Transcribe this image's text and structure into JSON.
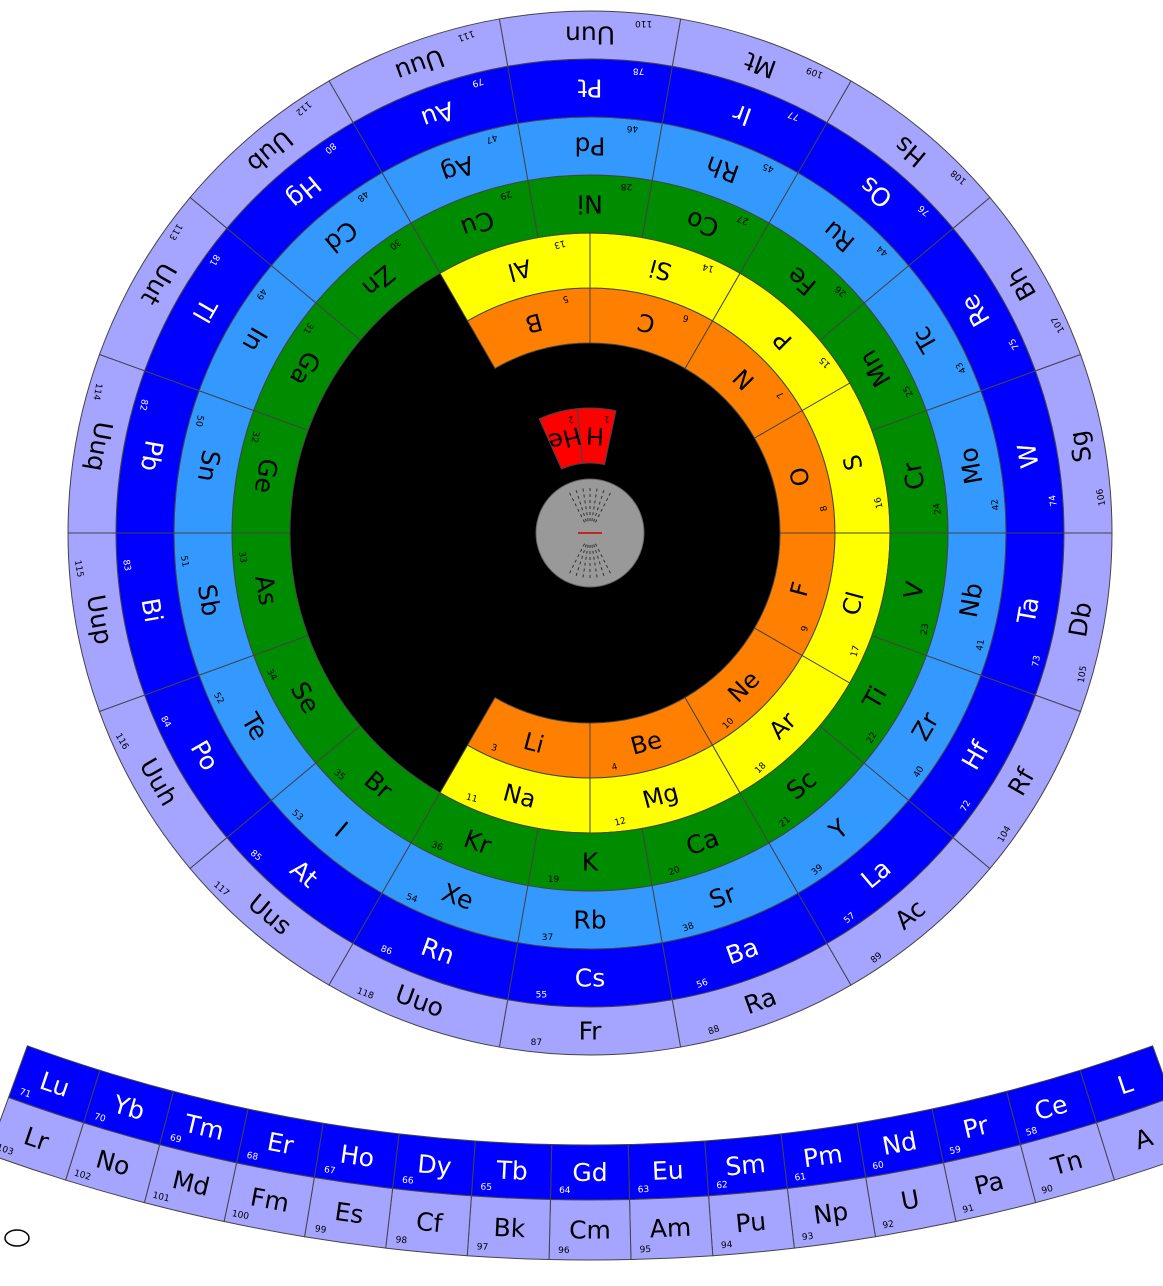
{
  "colors": {
    "s1": "#ff0000",
    "s2": "#ff8000",
    "p": "#ffff00",
    "d3": "#008c00",
    "d4": "#3399ff",
    "d5": "#0000ff",
    "outer": "#a5a5ff",
    "core": "#000000",
    "nucleus": "#999999",
    "stroke": "#444444"
  },
  "rings": [
    {
      "id": "ring-period-1",
      "color": "s1",
      "text": "#000000",
      "cells": [
        {
          "symbol": "H",
          "number": "1"
        },
        {
          "symbol": "He",
          "number": "2"
        }
      ]
    },
    {
      "id": "ring-shell-2",
      "color": "s2",
      "text": "#000000",
      "cells": [
        {
          "symbol": "Li",
          "number": "3"
        },
        {
          "symbol": "Be",
          "number": "4"
        },
        {
          "symbol": "Ne",
          "number": "10"
        },
        {
          "symbol": "F",
          "number": "9"
        },
        {
          "symbol": "O",
          "number": "8"
        },
        {
          "symbol": "N",
          "number": "7"
        },
        {
          "symbol": "C",
          "number": "6"
        },
        {
          "symbol": "B",
          "number": "5"
        }
      ]
    },
    {
      "id": "ring-shell-3",
      "color": "p",
      "text": "#000000",
      "cells": [
        {
          "symbol": "Na",
          "number": "11"
        },
        {
          "symbol": "Mg",
          "number": "12"
        },
        {
          "symbol": "Ar",
          "number": "18"
        },
        {
          "symbol": "Cl",
          "number": "17"
        },
        {
          "symbol": "S",
          "number": "16"
        },
        {
          "symbol": "P",
          "number": "15"
        },
        {
          "symbol": "Si",
          "number": "14"
        },
        {
          "symbol": "Al",
          "number": "13"
        }
      ]
    },
    {
      "id": "ring-period-4",
      "color": "d3",
      "text": "#000000",
      "cells": [
        {
          "symbol": "K",
          "number": "19"
        },
        {
          "symbol": "Ca",
          "number": "20"
        },
        {
          "symbol": "Sc",
          "number": "21"
        },
        {
          "symbol": "Ti",
          "number": "22"
        },
        {
          "symbol": "V",
          "number": "23"
        },
        {
          "symbol": "Cr",
          "number": "24"
        },
        {
          "symbol": "Mn",
          "number": "25"
        },
        {
          "symbol": "Fe",
          "number": "26"
        },
        {
          "symbol": "Co",
          "number": "27"
        },
        {
          "symbol": "Ni",
          "number": "28"
        },
        {
          "symbol": "Cu",
          "number": "29"
        },
        {
          "symbol": "Zn",
          "number": "30"
        },
        {
          "symbol": "Ga",
          "number": "31"
        },
        {
          "symbol": "Ge",
          "number": "32"
        },
        {
          "symbol": "As",
          "number": "33"
        },
        {
          "symbol": "Se",
          "number": "34"
        },
        {
          "symbol": "Br",
          "number": "35"
        },
        {
          "symbol": "Kr",
          "number": "36"
        }
      ]
    },
    {
      "id": "ring-period-5",
      "color": "d4",
      "text": "#000000",
      "cells": [
        {
          "symbol": "Rb",
          "number": "37"
        },
        {
          "symbol": "Sr",
          "number": "38"
        },
        {
          "symbol": "Y",
          "number": "39"
        },
        {
          "symbol": "Zr",
          "number": "40"
        },
        {
          "symbol": "Nb",
          "number": "41"
        },
        {
          "symbol": "Mo",
          "number": "42"
        },
        {
          "symbol": "Tc",
          "number": "43"
        },
        {
          "symbol": "Ru",
          "number": "44"
        },
        {
          "symbol": "Rh",
          "number": "45"
        },
        {
          "symbol": "Pd",
          "number": "46"
        },
        {
          "symbol": "Ag",
          "number": "47"
        },
        {
          "symbol": "Cd",
          "number": "48"
        },
        {
          "symbol": "In",
          "number": "49"
        },
        {
          "symbol": "Sn",
          "number": "50"
        },
        {
          "symbol": "Sb",
          "number": "51"
        },
        {
          "symbol": "Te",
          "number": "52"
        },
        {
          "symbol": "I",
          "number": "53"
        },
        {
          "symbol": "Xe",
          "number": "54"
        }
      ]
    },
    {
      "id": "ring-period-6",
      "color": "d5",
      "text": "#ffffff",
      "cells": [
        {
          "symbol": "Cs",
          "number": "55"
        },
        {
          "symbol": "Ba",
          "number": "56"
        },
        {
          "symbol": "La",
          "number": "57"
        },
        {
          "symbol": "Hf",
          "number": "72"
        },
        {
          "symbol": "Ta",
          "number": "73"
        },
        {
          "symbol": "W",
          "number": "74"
        },
        {
          "symbol": "Re",
          "number": "75"
        },
        {
          "symbol": "Os",
          "number": "76"
        },
        {
          "symbol": "Ir",
          "number": "77"
        },
        {
          "symbol": "Pt",
          "number": "78"
        },
        {
          "symbol": "Au",
          "number": "79"
        },
        {
          "symbol": "Hg",
          "number": "80"
        },
        {
          "symbol": "Tl",
          "number": "81"
        },
        {
          "symbol": "Pb",
          "number": "82"
        },
        {
          "symbol": "Bi",
          "number": "83"
        },
        {
          "symbol": "Po",
          "number": "84"
        },
        {
          "symbol": "At",
          "number": "85"
        },
        {
          "symbol": "Rn",
          "number": "86"
        }
      ]
    },
    {
      "id": "ring-period-7",
      "color": "outer",
      "text": "#000000",
      "cells": [
        {
          "symbol": "Fr",
          "number": "87"
        },
        {
          "symbol": "Ra",
          "number": "88"
        },
        {
          "symbol": "Ac",
          "number": "89"
        },
        {
          "symbol": "Rf",
          "number": "104"
        },
        {
          "symbol": "Db",
          "number": "105"
        },
        {
          "symbol": "Sg",
          "number": "106"
        },
        {
          "symbol": "Bh",
          "number": "107"
        },
        {
          "symbol": "Hs",
          "number": "108"
        },
        {
          "symbol": "Mt",
          "number": "109"
        },
        {
          "symbol": "Uun",
          "number": "110"
        },
        {
          "symbol": "Uuu",
          "number": "111"
        },
        {
          "symbol": "Uub",
          "number": "112"
        },
        {
          "symbol": "Uut",
          "number": "113"
        },
        {
          "symbol": "Uuq",
          "number": "114"
        },
        {
          "symbol": "Uup",
          "number": "115"
        },
        {
          "symbol": "Uuh",
          "number": "116"
        },
        {
          "symbol": "Uus",
          "number": "117"
        },
        {
          "symbol": "Uuo",
          "number": "118"
        }
      ]
    }
  ],
  "f_rows": [
    {
      "id": "f-row-lanthanides",
      "color": "d5",
      "text": "#ffffff",
      "cells": [
        {
          "symbol": "L",
          "number": ""
        },
        {
          "symbol": "Ce",
          "number": "58"
        },
        {
          "symbol": "Pr",
          "number": "59"
        },
        {
          "symbol": "Nd",
          "number": "60"
        },
        {
          "symbol": "Pm",
          "number": "61"
        },
        {
          "symbol": "Sm",
          "number": "62"
        },
        {
          "symbol": "Eu",
          "number": "63"
        },
        {
          "symbol": "Gd",
          "number": "64"
        },
        {
          "symbol": "Tb",
          "number": "65"
        },
        {
          "symbol": "Dy",
          "number": "66"
        },
        {
          "symbol": "Ho",
          "number": "67"
        },
        {
          "symbol": "Er",
          "number": "68"
        },
        {
          "symbol": "Tm",
          "number": "69"
        },
        {
          "symbol": "Yb",
          "number": "70"
        },
        {
          "symbol": "Lu",
          "number": "71"
        }
      ]
    },
    {
      "id": "f-row-actinides",
      "color": "outer",
      "text": "#000000",
      "cells": [
        {
          "symbol": "A",
          "number": ""
        },
        {
          "symbol": "Tn",
          "number": "90"
        },
        {
          "symbol": "Pa",
          "number": "91"
        },
        {
          "symbol": "U",
          "number": "92"
        },
        {
          "symbol": "Np",
          "number": "93"
        },
        {
          "symbol": "Pu",
          "number": "94"
        },
        {
          "symbol": "Am",
          "number": "95"
        },
        {
          "symbol": "Cm",
          "number": "96"
        },
        {
          "symbol": "Bk",
          "number": "97"
        },
        {
          "symbol": "Cf",
          "number": "98"
        },
        {
          "symbol": "Es",
          "number": "99"
        },
        {
          "symbol": "Fm",
          "number": "100"
        },
        {
          "symbol": "Md",
          "number": "101"
        },
        {
          "symbol": "No",
          "number": "102"
        },
        {
          "symbol": "Lr",
          "number": "103"
        }
      ]
    }
  ]
}
